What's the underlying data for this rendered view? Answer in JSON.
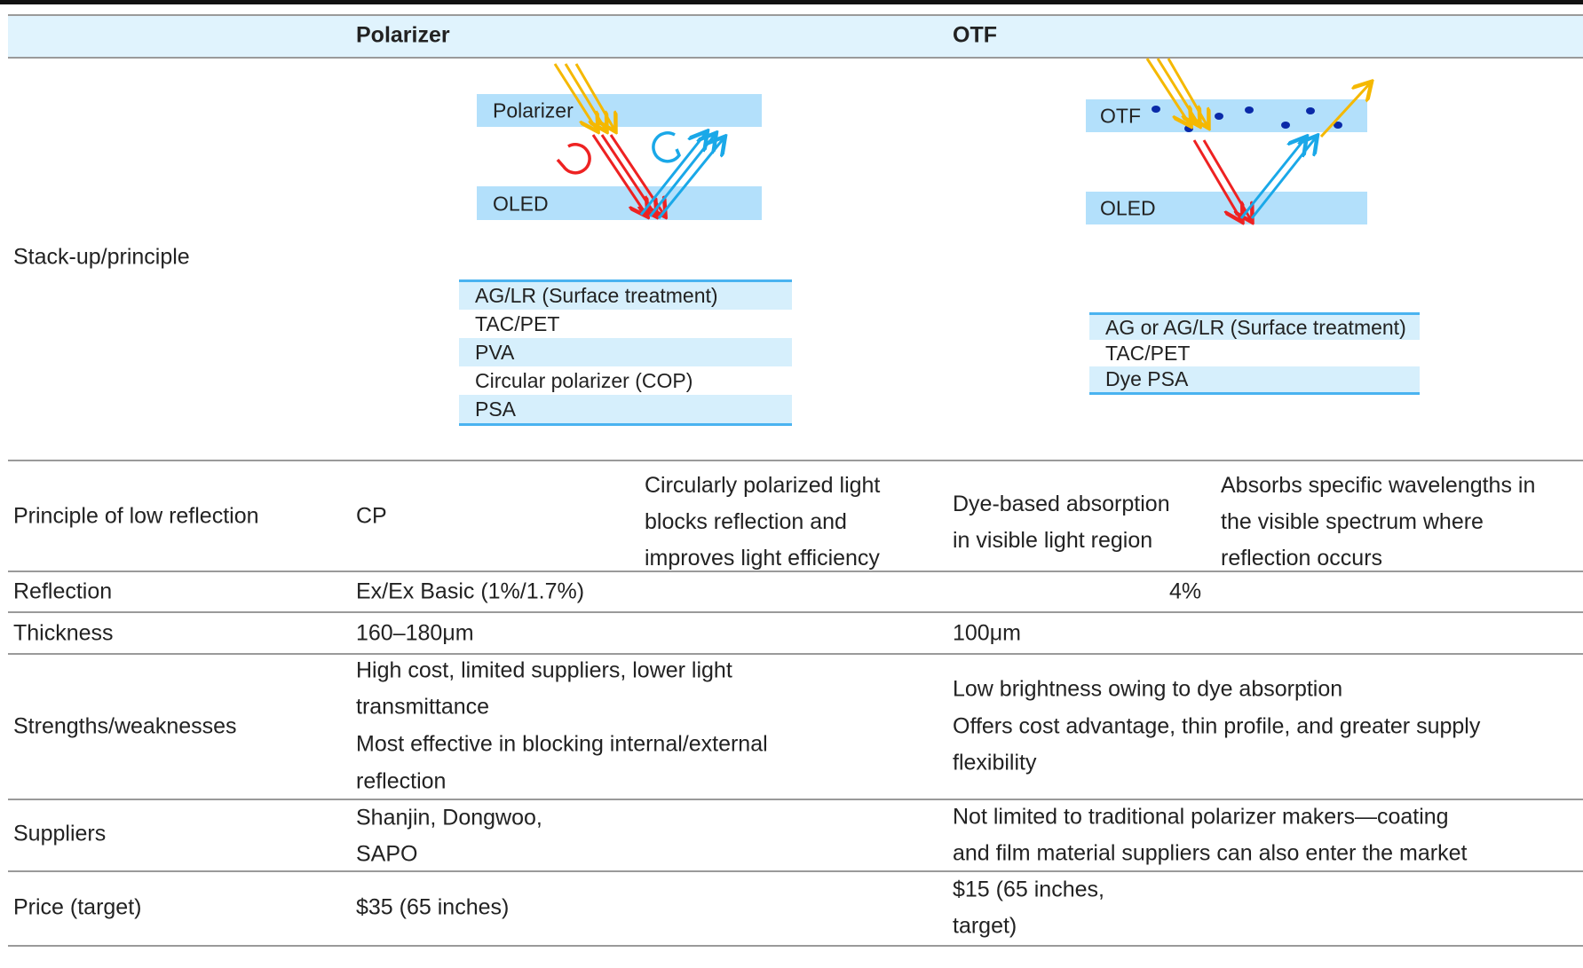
{
  "header": {
    "col_polarizer": "Polarizer",
    "col_otf": "OTF"
  },
  "rows": {
    "stackup": {
      "label": "Stack-up/principle",
      "polarizer_diagram": {
        "top_layer": "Polarizer",
        "bottom_layer": "OLED",
        "layers": [
          "AG/LR (Surface treatment)",
          "TAC/PET",
          "PVA",
          "Circular polarizer (COP)",
          "PSA"
        ]
      },
      "otf_diagram": {
        "top_layer": "OTF",
        "bottom_layer": "OLED",
        "layers": [
          "AG or AG/LR (Surface treatment)",
          "TAC/PET",
          "Dye PSA"
        ]
      }
    },
    "principle": {
      "label": "Principle of low reflection",
      "polarizer_short": "CP",
      "polarizer_desc": [
        "Circularly polarized light",
        "blocks reflection and",
        "improves light efficiency"
      ],
      "otf_short": [
        "Dye-based absorption",
        "in visible light region"
      ],
      "otf_desc": [
        "Absorbs specific wavelengths in",
        "the visible spectrum where",
        "reflection occurs"
      ]
    },
    "reflection": {
      "label": "Reflection",
      "polarizer": "Ex/Ex Basic (1%/1.7%)",
      "otf": "4%"
    },
    "thickness": {
      "label": "Thickness",
      "polarizer": "160–180μm",
      "otf": "100μm"
    },
    "strengths": {
      "label": "Strengths/weaknesses",
      "polarizer": [
        "High cost, limited suppliers, lower light",
        "transmittance",
        "Most effective in blocking internal/external",
        "reflection"
      ],
      "otf": [
        "Low brightness owing to dye absorption",
        "Offers cost advantage, thin profile, and greater supply",
        "flexibility"
      ]
    },
    "suppliers": {
      "label": "Suppliers",
      "polarizer": [
        "Shanjin, Dongwoo,",
        "SAPO"
      ],
      "otf": [
        "Not limited to traditional polarizer makers—coating",
        "and film material suppliers can also enter the market"
      ]
    },
    "price": {
      "label": "Price (target)",
      "polarizer": "$35 (65 inches)",
      "otf": [
        "$15 (65 inches,",
        "target)"
      ]
    }
  },
  "colors": {
    "header_bg": "#e0f3fd",
    "band": "#b3e0fb",
    "incident": "#f5b800",
    "red": "#ee2222",
    "blue": "#1aa8e8",
    "dye": "#0a2aa8"
  }
}
